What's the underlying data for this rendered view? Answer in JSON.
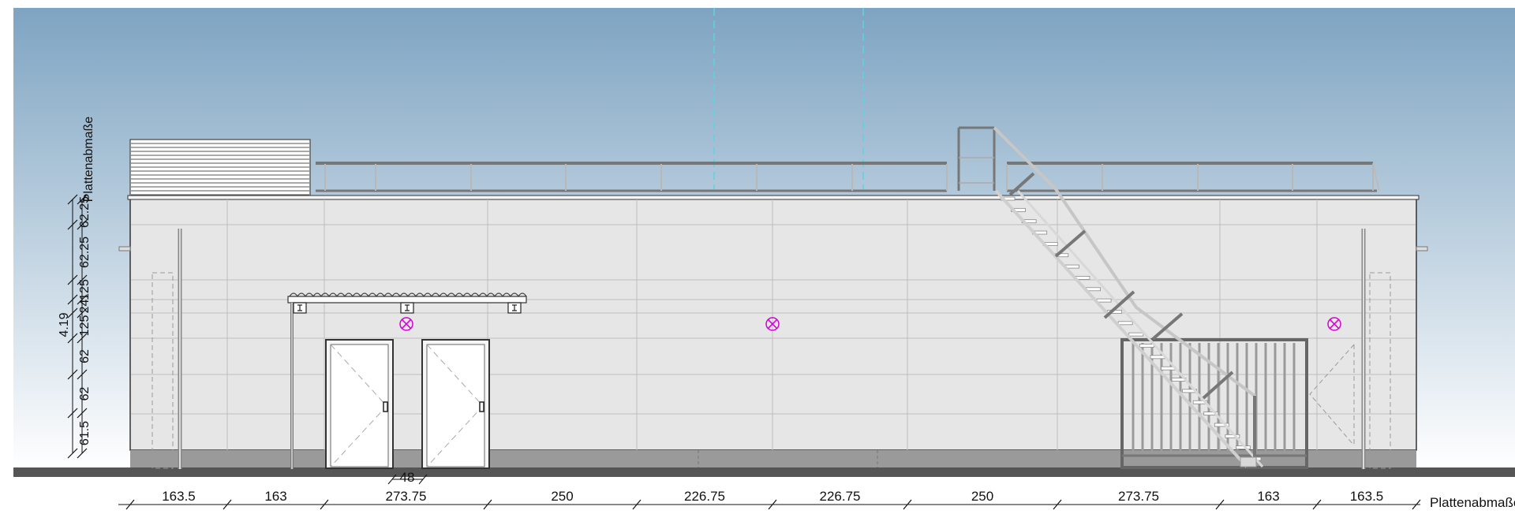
{
  "drawing": {
    "side_label": "Plattenabmaße",
    "height_label": "4.19",
    "door_width_label": "48"
  },
  "horizontal_dimensions": [
    "163.5",
    "163",
    "273.75",
    "250",
    "226.75",
    "226.75",
    "250",
    "273.75",
    "163",
    "163.5"
  ],
  "horizontal_label": "Plattenabmaße",
  "vertical_dimensions": [
    "61.5",
    "62",
    "62",
    "125",
    "24",
    "125",
    "62.25",
    "62.25"
  ],
  "colors": {
    "sky_top": "#7ea4c2",
    "sky_bottom": "#ffffff",
    "wall": "#e6e6e6",
    "plinth": "#9a9a9a",
    "light_marker": "#d400d4",
    "axis_line": "#5fd3e0"
  }
}
